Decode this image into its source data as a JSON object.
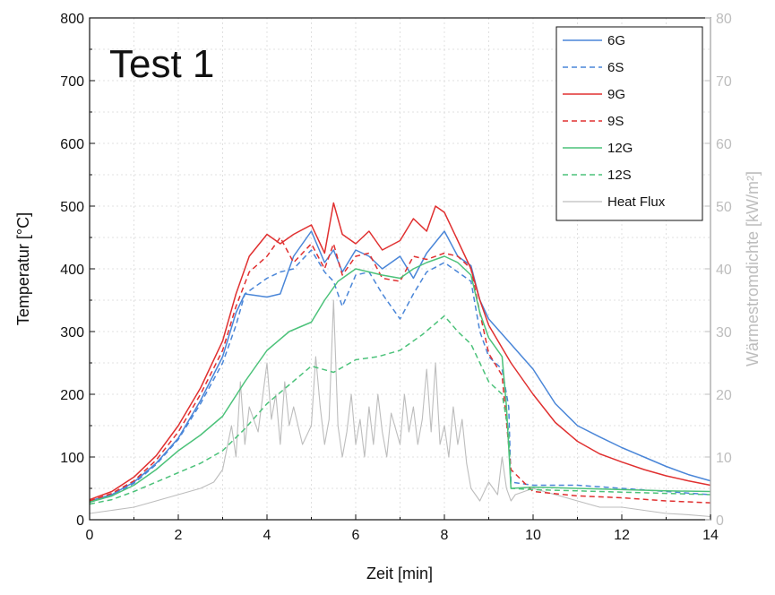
{
  "chart_data": {
    "type": "line",
    "title": "Test 1",
    "xlabel": "Zeit [min]",
    "ylabel": "Temperatur [°C]",
    "y2label": "Wärmestromdichte [kW/m²]",
    "xlim": [
      0,
      14
    ],
    "ylim": [
      0,
      800
    ],
    "y2lim": [
      0,
      80
    ],
    "xticks": [
      "0",
      "2",
      "4",
      "6",
      "8",
      "10",
      "12",
      "14"
    ],
    "yticks": [
      "0",
      "100",
      "200",
      "300",
      "400",
      "500",
      "600",
      "700",
      "800"
    ],
    "y2ticks": [
      "0",
      "10",
      "20",
      "30",
      "40",
      "50",
      "60",
      "70",
      "80"
    ],
    "grid": true,
    "legend_position": "top-right",
    "series": [
      {
        "name": "6G",
        "color": "#4a86d8",
        "dash": false,
        "axis": "left",
        "points": [
          [
            0,
            30
          ],
          [
            0.5,
            40
          ],
          [
            1,
            60
          ],
          [
            1.5,
            90
          ],
          [
            2,
            130
          ],
          [
            2.5,
            190
          ],
          [
            3,
            260
          ],
          [
            3.3,
            330
          ],
          [
            3.5,
            360
          ],
          [
            4,
            355
          ],
          [
            4.3,
            360
          ],
          [
            4.6,
            420
          ],
          [
            5,
            460
          ],
          [
            5.3,
            410
          ],
          [
            5.5,
            430
          ],
          [
            5.7,
            395
          ],
          [
            6,
            430
          ],
          [
            6.3,
            420
          ],
          [
            6.6,
            400
          ],
          [
            7,
            420
          ],
          [
            7.3,
            385
          ],
          [
            7.6,
            425
          ],
          [
            8,
            460
          ],
          [
            8.3,
            420
          ],
          [
            8.6,
            405
          ],
          [
            8.8,
            350
          ],
          [
            9,
            320
          ],
          [
            9.5,
            280
          ],
          [
            10,
            240
          ],
          [
            10.5,
            185
          ],
          [
            11,
            150
          ],
          [
            11.5,
            132
          ],
          [
            12,
            115
          ],
          [
            12.5,
            100
          ],
          [
            13,
            85
          ],
          [
            13.5,
            72
          ],
          [
            14,
            62
          ]
        ]
      },
      {
        "name": "6S",
        "color": "#4a86d8",
        "dash": true,
        "axis": "left",
        "points": [
          [
            0,
            28
          ],
          [
            0.5,
            38
          ],
          [
            1,
            58
          ],
          [
            1.5,
            88
          ],
          [
            2,
            128
          ],
          [
            2.5,
            185
          ],
          [
            3,
            250
          ],
          [
            3.3,
            310
          ],
          [
            3.5,
            360
          ],
          [
            4,
            385
          ],
          [
            4.3,
            395
          ],
          [
            4.6,
            400
          ],
          [
            5,
            430
          ],
          [
            5.3,
            395
          ],
          [
            5.5,
            380
          ],
          [
            5.7,
            340
          ],
          [
            6,
            390
          ],
          [
            6.3,
            395
          ],
          [
            6.6,
            360
          ],
          [
            7,
            320
          ],
          [
            7.3,
            360
          ],
          [
            7.6,
            395
          ],
          [
            8,
            410
          ],
          [
            8.3,
            395
          ],
          [
            8.6,
            380
          ],
          [
            8.8,
            300
          ],
          [
            9,
            260
          ],
          [
            9.3,
            240
          ],
          [
            9.45,
            180
          ],
          [
            9.5,
            60
          ],
          [
            10,
            55
          ],
          [
            11,
            55
          ],
          [
            12,
            50
          ],
          [
            13,
            45
          ],
          [
            14,
            40
          ]
        ]
      },
      {
        "name": "9G",
        "color": "#e03030",
        "dash": false,
        "axis": "left",
        "points": [
          [
            0,
            32
          ],
          [
            0.5,
            45
          ],
          [
            1,
            68
          ],
          [
            1.5,
            102
          ],
          [
            2,
            150
          ],
          [
            2.5,
            210
          ],
          [
            3,
            285
          ],
          [
            3.3,
            360
          ],
          [
            3.6,
            420
          ],
          [
            4,
            455
          ],
          [
            4.3,
            440
          ],
          [
            4.6,
            455
          ],
          [
            5,
            470
          ],
          [
            5.3,
            425
          ],
          [
            5.5,
            505
          ],
          [
            5.7,
            455
          ],
          [
            6,
            440
          ],
          [
            6.3,
            460
          ],
          [
            6.6,
            430
          ],
          [
            7,
            445
          ],
          [
            7.3,
            480
          ],
          [
            7.6,
            460
          ],
          [
            7.8,
            500
          ],
          [
            8,
            490
          ],
          [
            8.3,
            445
          ],
          [
            8.6,
            400
          ],
          [
            8.8,
            350
          ],
          [
            9,
            310
          ],
          [
            9.5,
            250
          ],
          [
            10,
            200
          ],
          [
            10.5,
            155
          ],
          [
            11,
            125
          ],
          [
            11.5,
            105
          ],
          [
            12,
            92
          ],
          [
            12.5,
            80
          ],
          [
            13,
            70
          ],
          [
            13.5,
            62
          ],
          [
            14,
            55
          ]
        ]
      },
      {
        "name": "9S",
        "color": "#e03030",
        "dash": true,
        "axis": "left",
        "points": [
          [
            0,
            30
          ],
          [
            0.5,
            42
          ],
          [
            1,
            62
          ],
          [
            1.5,
            95
          ],
          [
            2,
            140
          ],
          [
            2.5,
            200
          ],
          [
            3,
            270
          ],
          [
            3.3,
            340
          ],
          [
            3.6,
            395
          ],
          [
            4,
            420
          ],
          [
            4.3,
            450
          ],
          [
            4.6,
            410
          ],
          [
            5,
            440
          ],
          [
            5.3,
            400
          ],
          [
            5.5,
            440
          ],
          [
            5.7,
            390
          ],
          [
            6,
            420
          ],
          [
            6.3,
            425
          ],
          [
            6.6,
            385
          ],
          [
            7,
            380
          ],
          [
            7.3,
            420
          ],
          [
            7.6,
            415
          ],
          [
            8,
            425
          ],
          [
            8.3,
            420
          ],
          [
            8.6,
            400
          ],
          [
            8.8,
            330
          ],
          [
            9,
            265
          ],
          [
            9.3,
            230
          ],
          [
            9.5,
            80
          ],
          [
            10,
            45
          ],
          [
            11,
            38
          ],
          [
            12,
            35
          ],
          [
            13,
            30
          ],
          [
            14,
            27
          ]
        ]
      },
      {
        "name": "12G",
        "color": "#4cc27a",
        "dash": false,
        "axis": "left",
        "points": [
          [
            0,
            28
          ],
          [
            0.5,
            38
          ],
          [
            1,
            55
          ],
          [
            1.5,
            80
          ],
          [
            2,
            110
          ],
          [
            2.5,
            135
          ],
          [
            3,
            165
          ],
          [
            3.5,
            220
          ],
          [
            4,
            270
          ],
          [
            4.5,
            300
          ],
          [
            5,
            315
          ],
          [
            5.3,
            350
          ],
          [
            5.6,
            380
          ],
          [
            6,
            400
          ],
          [
            6.3,
            395
          ],
          [
            6.6,
            390
          ],
          [
            7,
            385
          ],
          [
            7.3,
            400
          ],
          [
            7.6,
            410
          ],
          [
            8,
            420
          ],
          [
            8.3,
            410
          ],
          [
            8.6,
            390
          ],
          [
            8.8,
            330
          ],
          [
            9,
            290
          ],
          [
            9.3,
            260
          ],
          [
            9.4,
            180
          ],
          [
            9.5,
            50
          ],
          [
            10,
            52
          ],
          [
            11,
            50
          ],
          [
            12,
            48
          ],
          [
            13,
            46
          ],
          [
            14,
            45
          ]
        ]
      },
      {
        "name": "12S",
        "color": "#4cc27a",
        "dash": true,
        "axis": "left",
        "points": [
          [
            0,
            25
          ],
          [
            0.5,
            32
          ],
          [
            1,
            45
          ],
          [
            1.5,
            60
          ],
          [
            2,
            75
          ],
          [
            2.5,
            90
          ],
          [
            3,
            110
          ],
          [
            3.5,
            145
          ],
          [
            4,
            185
          ],
          [
            4.5,
            215
          ],
          [
            5,
            245
          ],
          [
            5.5,
            235
          ],
          [
            6,
            255
          ],
          [
            6.5,
            260
          ],
          [
            7,
            270
          ],
          [
            7.5,
            295
          ],
          [
            8,
            325
          ],
          [
            8.3,
            300
          ],
          [
            8.6,
            280
          ],
          [
            8.8,
            250
          ],
          [
            9,
            220
          ],
          [
            9.3,
            200
          ],
          [
            9.45,
            140
          ],
          [
            9.5,
            50
          ],
          [
            10,
            48
          ],
          [
            11,
            46
          ],
          [
            12,
            44
          ],
          [
            13,
            42
          ],
          [
            14,
            40
          ]
        ]
      },
      {
        "name": "Heat Flux",
        "color": "#bdbdbd",
        "dash": false,
        "axis": "right",
        "points": [
          [
            0,
            1
          ],
          [
            0.5,
            1.5
          ],
          [
            1,
            2
          ],
          [
            1.5,
            3
          ],
          [
            2,
            4
          ],
          [
            2.5,
            5
          ],
          [
            2.8,
            6
          ],
          [
            3,
            8
          ],
          [
            3.2,
            15
          ],
          [
            3.3,
            10
          ],
          [
            3.4,
            22
          ],
          [
            3.5,
            12
          ],
          [
            3.6,
            18
          ],
          [
            3.8,
            14
          ],
          [
            4,
            25
          ],
          [
            4.1,
            16
          ],
          [
            4.2,
            20
          ],
          [
            4.3,
            12
          ],
          [
            4.4,
            22
          ],
          [
            4.5,
            15
          ],
          [
            4.6,
            18
          ],
          [
            4.8,
            12
          ],
          [
            5,
            15
          ],
          [
            5.1,
            26
          ],
          [
            5.2,
            18
          ],
          [
            5.3,
            12
          ],
          [
            5.4,
            16
          ],
          [
            5.5,
            35
          ],
          [
            5.6,
            15
          ],
          [
            5.7,
            10
          ],
          [
            5.8,
            14
          ],
          [
            5.9,
            20
          ],
          [
            6,
            12
          ],
          [
            6.1,
            16
          ],
          [
            6.2,
            10
          ],
          [
            6.3,
            18
          ],
          [
            6.4,
            12
          ],
          [
            6.5,
            20
          ],
          [
            6.6,
            14
          ],
          [
            6.7,
            10
          ],
          [
            6.8,
            17
          ],
          [
            7,
            12
          ],
          [
            7.1,
            20
          ],
          [
            7.2,
            14
          ],
          [
            7.3,
            18
          ],
          [
            7.4,
            12
          ],
          [
            7.5,
            16
          ],
          [
            7.6,
            24
          ],
          [
            7.7,
            14
          ],
          [
            7.8,
            25
          ],
          [
            7.9,
            12
          ],
          [
            8,
            15
          ],
          [
            8.1,
            10
          ],
          [
            8.2,
            18
          ],
          [
            8.3,
            12
          ],
          [
            8.4,
            16
          ],
          [
            8.5,
            9
          ],
          [
            8.6,
            5
          ],
          [
            8.8,
            3
          ],
          [
            9,
            6
          ],
          [
            9.2,
            4
          ],
          [
            9.3,
            10
          ],
          [
            9.4,
            5
          ],
          [
            9.5,
            3
          ],
          [
            9.6,
            4
          ],
          [
            10,
            5
          ],
          [
            10.5,
            4
          ],
          [
            11,
            3
          ],
          [
            11.5,
            2
          ],
          [
            12,
            2
          ],
          [
            12.5,
            1.5
          ],
          [
            13,
            1
          ],
          [
            13.5,
            0.8
          ],
          [
            14,
            0.5
          ]
        ]
      }
    ]
  }
}
